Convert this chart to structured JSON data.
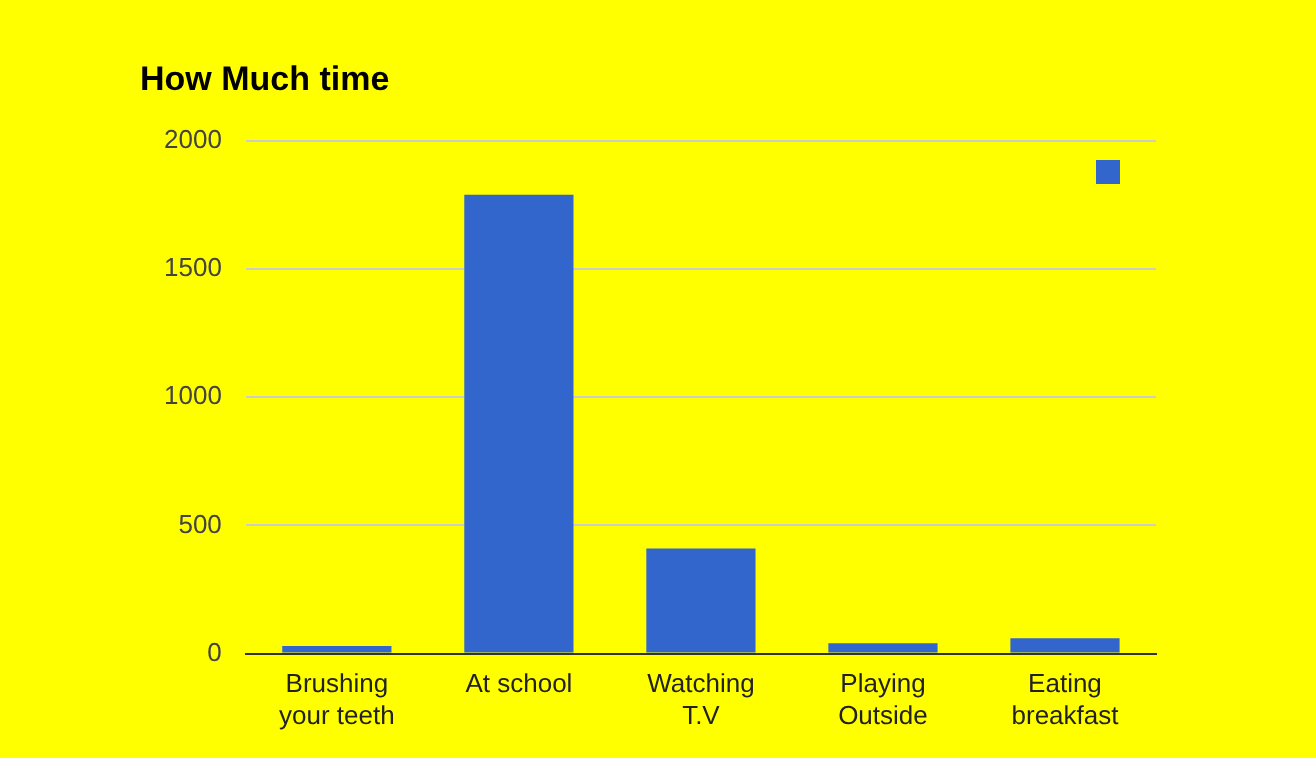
{
  "chart_data": {
    "type": "bar",
    "title": "How Much time",
    "categories": [
      "Brushing your teeth",
      "At school",
      "Watching T.V",
      "Playing Outside",
      "Eating breakfast"
    ],
    "series": [
      {
        "color": "#3366cc",
        "values": [
          30,
          1790,
          410,
          40,
          60
        ]
      }
    ],
    "ylim": [
      0,
      2000
    ],
    "yticks": [
      0,
      500,
      1000,
      1500,
      2000
    ],
    "grid": "y"
  }
}
